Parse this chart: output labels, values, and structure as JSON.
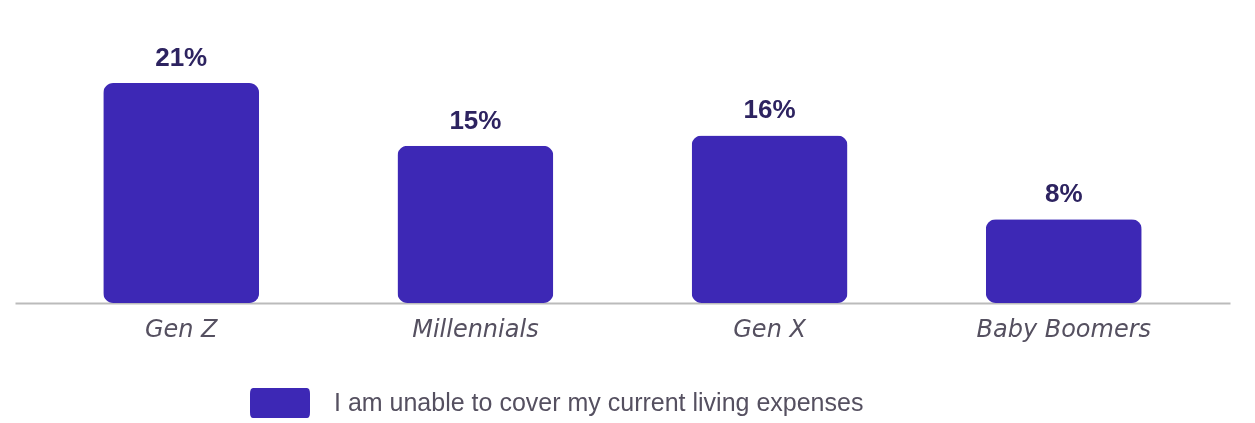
{
  "chart_data": {
    "type": "bar",
    "categories": [
      "Gen Z",
      "Millennials",
      "Gen X",
      "Baby Boomers"
    ],
    "series": [
      {
        "name": "I am unable to cover my current living expenses",
        "color": "#3d28b5",
        "values": [
          21,
          15,
          16,
          8
        ],
        "value_labels": [
          "21%",
          "15%",
          "16%",
          "8%"
        ]
      }
    ],
    "legend": "bottom"
  }
}
